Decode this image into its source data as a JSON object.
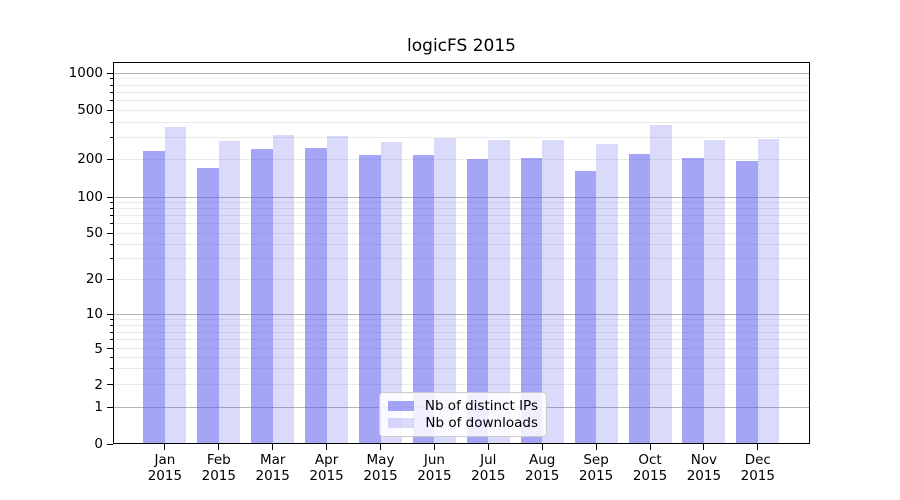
{
  "chart_data": {
    "type": "bar",
    "title": "logicFS 2015",
    "months": [
      "Jan",
      "Feb",
      "Mar",
      "Apr",
      "May",
      "Jun",
      "Jul",
      "Aug",
      "Sep",
      "Oct",
      "Nov",
      "Dec"
    ],
    "year_label": "2015",
    "series": [
      {
        "name": "Nb of distinct IPs",
        "apparent_color": "#a5a5f2",
        "css_color": "rgba(85,85,238,0.53)",
        "values": [
          235,
          170,
          243,
          248,
          218,
          217,
          200,
          207,
          162,
          220,
          207,
          195
        ]
      },
      {
        "name": "Nb of downloads",
        "apparent_color": "#d9d9f8",
        "css_color": "rgba(85,85,238,0.22)",
        "values": [
          370,
          280,
          318,
          312,
          275,
          300,
          290,
          290,
          265,
          380,
          285,
          295
        ]
      }
    ],
    "yticks": [
      0,
      1,
      2,
      5,
      10,
      20,
      50,
      100,
      200,
      500,
      1000
    ],
    "yaxis_scale": "log-like with zero baseline",
    "ylim": [
      0,
      1240
    ],
    "grid": "both",
    "legend_position": "lower center",
    "xlabel": "",
    "ylabel": ""
  },
  "colors": {
    "bar_base": "#5555ee",
    "grid_power10": "#b4b4b4",
    "grid_minor": "#eaeaea",
    "axis_line": "#000000",
    "legend_border": "#cccccc",
    "text": "#000000",
    "background": "#ffffff"
  }
}
